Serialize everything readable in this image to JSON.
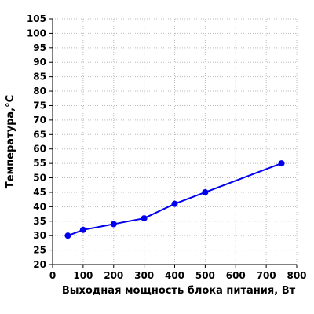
{
  "chart_data": {
    "type": "line",
    "title": "",
    "xlabel": "Выходная мощность блока питания, Вт",
    "ylabel": "Температура,°C",
    "xlim": [
      0,
      800
    ],
    "ylim": [
      20,
      105
    ],
    "x_ticks": [
      0,
      100,
      200,
      300,
      400,
      500,
      600,
      700,
      800
    ],
    "y_ticks": [
      20,
      25,
      30,
      35,
      40,
      45,
      50,
      55,
      60,
      65,
      70,
      75,
      80,
      85,
      90,
      95,
      100,
      105
    ],
    "grid": true,
    "series": [
      {
        "color": "#0000ee",
        "x": [
          50,
          100,
          200,
          300,
          400,
          500,
          750
        ],
        "y": [
          30,
          32,
          34,
          36,
          41,
          45,
          55
        ]
      }
    ]
  }
}
